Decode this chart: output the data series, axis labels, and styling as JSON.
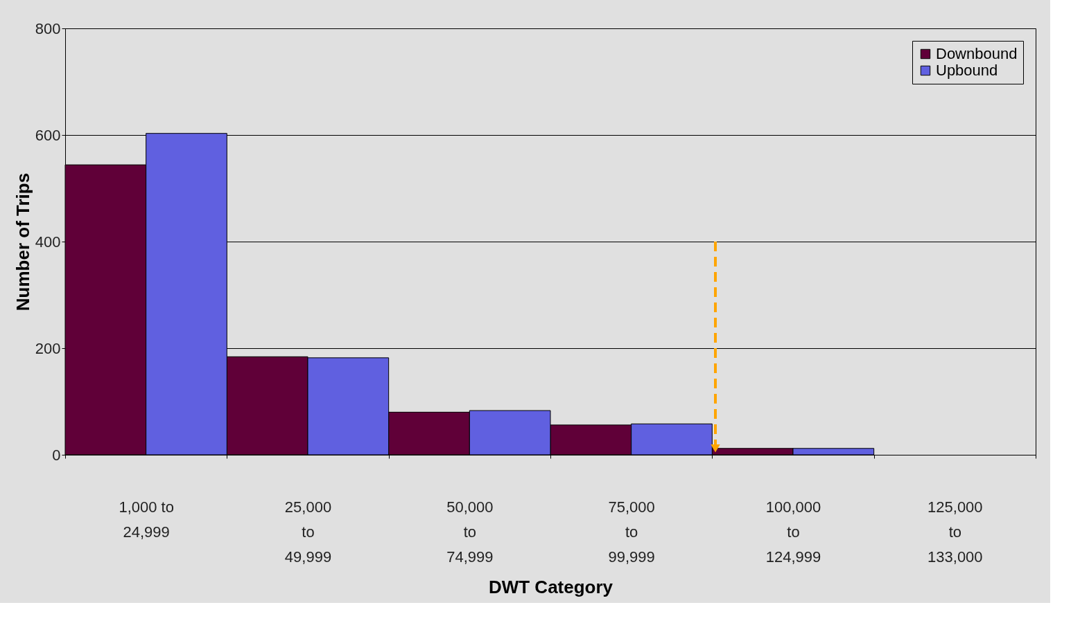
{
  "chart_data": {
    "type": "bar",
    "xlabel": "DWT Category",
    "ylabel": "Number of Trips",
    "categories": [
      "1,000 to\n24,999",
      "25,000\nto\n49,999",
      "50,000\nto\n74,999",
      "75,000\nto\n99,999",
      "100,000\nto\n124,999",
      "125,000\nto\n133,000"
    ],
    "series": [
      {
        "name": "Downbound",
        "color": "#600038",
        "values": [
          544,
          184,
          80,
          56,
          12,
          0
        ]
      },
      {
        "name": "Upbound",
        "color": "#6060e0",
        "values": [
          603,
          182,
          83,
          58,
          12,
          0
        ]
      }
    ],
    "ylim": [
      0,
      800
    ],
    "yticks": [
      0,
      200,
      400,
      600,
      800
    ],
    "grid": "y",
    "legend": "top right"
  }
}
